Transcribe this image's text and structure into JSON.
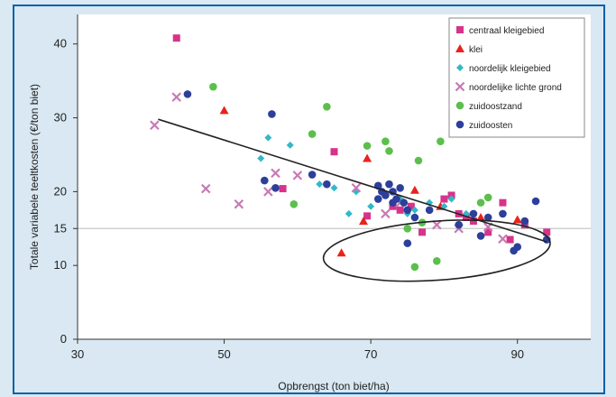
{
  "chart_data": {
    "type": "scatter",
    "xlabel": "Opbrengst (ton biet/ha)",
    "ylabel": "Totale variabele teeltkosten (€/ton biet)",
    "xlim": [
      30,
      100
    ],
    "ylim": [
      0,
      44
    ],
    "x_ticks": [
      "30",
      "50",
      "70",
      "90"
    ],
    "x_tick_values": [
      30,
      50,
      70,
      90
    ],
    "y_ticks": [
      "0",
      "10",
      "15",
      "20",
      "30",
      "40"
    ],
    "y_tick_values": [
      0,
      10,
      15,
      20,
      30,
      40
    ],
    "legend_position": "top-right",
    "reference_line": {
      "y": 15,
      "color": "#c7c7c7"
    },
    "trend_line": {
      "x": [
        41,
        94
      ],
      "y": [
        29.8,
        13.2
      ],
      "color": "#222222"
    },
    "highlight_ellipse": {
      "cx": 79,
      "cy": 12,
      "rx": 15.5,
      "ry": 4,
      "color": "#222222"
    },
    "series": [
      {
        "name": "centraal kleigebied",
        "marker": "square",
        "color": "#d6338a",
        "x": [
          43.5,
          65,
          58,
          69.5,
          73,
          75.5,
          77,
          81,
          82,
          83,
          84,
          86,
          88,
          89,
          91,
          94,
          80,
          74
        ],
        "y": [
          40.8,
          25.4,
          20.4,
          16.7,
          18,
          18,
          14.5,
          19.5,
          17,
          16.5,
          16,
          14.5,
          18.5,
          13.5,
          15.5,
          14.5,
          19,
          17.5
        ]
      },
      {
        "name": "klei",
        "marker": "triangle",
        "color": "#e8231c",
        "x": [
          50,
          69.5,
          66,
          69,
          76,
          79.5,
          85,
          90
        ],
        "y": [
          31,
          24.5,
          11.7,
          16,
          20.2,
          18,
          16.5,
          16.2
        ]
      },
      {
        "name": "noordelijk kleigebied",
        "marker": "diamond",
        "color": "#33b8c8",
        "x": [
          55,
          56,
          59,
          63,
          65,
          67,
          68,
          70,
          72,
          74,
          75,
          76,
          78,
          80,
          81,
          83
        ],
        "y": [
          24.5,
          27.3,
          26.3,
          21,
          20.5,
          17,
          20,
          18,
          19.5,
          19,
          17,
          17.5,
          18.5,
          18,
          19,
          17
        ]
      },
      {
        "name": "noordelijke lichte grond",
        "marker": "x",
        "color": "#c879b4",
        "x": [
          40.5,
          43.5,
          47.5,
          52,
          56,
          57,
          60,
          68,
          72,
          74,
          79,
          82,
          86,
          88
        ],
        "y": [
          29,
          32.8,
          20.4,
          18.3,
          20,
          22.5,
          22.2,
          20.5,
          17,
          18.5,
          15.5,
          15,
          15.2,
          13.6
        ]
      },
      {
        "name": "zuidoostzand",
        "marker": "dot",
        "color": "#5cbf4c",
        "x": [
          48.5,
          59.5,
          62,
          64,
          69.5,
          72,
          72.5,
          75,
          76,
          76.5,
          77,
          79,
          79.5,
          85,
          86
        ],
        "y": [
          34.2,
          18.3,
          27.8,
          31.5,
          26.2,
          26.8,
          25.5,
          15,
          9.8,
          24.2,
          15.8,
          10.6,
          26.8,
          18.5,
          19.2
        ]
      },
      {
        "name": "zuidoosten",
        "marker": "dot",
        "color": "#2d3f9a",
        "x": [
          45,
          56.5,
          55.5,
          57,
          62,
          64,
          71,
          71.5,
          72,
          72.5,
          73,
          73.5,
          74,
          74.5,
          71,
          73,
          75,
          76,
          78,
          82,
          84,
          85,
          86,
          88,
          89.5,
          91,
          92.5,
          90,
          94,
          75
        ],
        "y": [
          33.2,
          30.5,
          21.5,
          20.5,
          22.3,
          21,
          20.8,
          20,
          19.5,
          21,
          20,
          19,
          20.5,
          18.5,
          19,
          18.5,
          17.5,
          16.5,
          17.5,
          15.5,
          17,
          14,
          16.5,
          17,
          12,
          16,
          18.7,
          12.5,
          13.5,
          13
        ]
      }
    ]
  }
}
